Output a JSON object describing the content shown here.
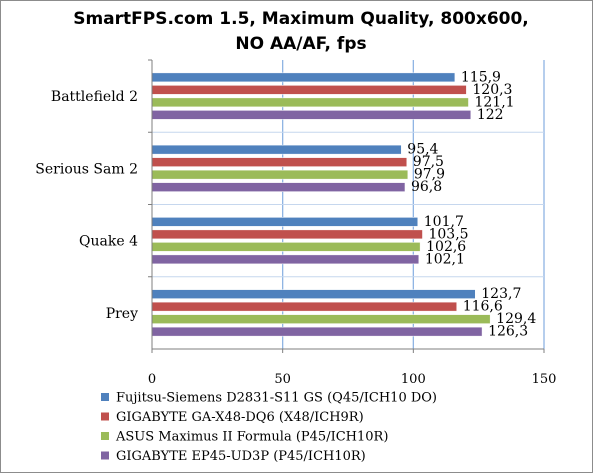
{
  "chart_data": {
    "type": "bar",
    "orientation": "horizontal",
    "title": "SmartFPS.com 1.5, Maximum Quality, 800x600, NO AA/AF, fps",
    "categories": [
      "Battlefield 2",
      "Serious Sam 2",
      "Quake 4",
      "Prey"
    ],
    "series": [
      {
        "name": "Fujitsu-Siemens D2831-S11 GS (Q45/ICH10 DO)",
        "color": "#4f81bd",
        "values": [
          115.9,
          95.4,
          101.7,
          123.7
        ],
        "labels": [
          "115,9",
          "95,4",
          "101,7",
          "123,7"
        ]
      },
      {
        "name": "GIGABYTE GA-X48-DQ6 (X48/ICH9R)",
        "color": "#c0504d",
        "values": [
          120.3,
          97.5,
          103.5,
          116.6
        ],
        "labels": [
          "120,3",
          "97,5",
          "103,5",
          "116,6"
        ]
      },
      {
        "name": "ASUS Maximus II Formula (P45/ICH10R)",
        "color": "#9bbb59",
        "values": [
          121.1,
          97.9,
          102.6,
          129.4
        ],
        "labels": [
          "121,1",
          "97,9",
          "102,6",
          "129,4"
        ]
      },
      {
        "name": "GIGABYTE EP45-UD3P (P45/ICH10R)",
        "color": "#8064a2",
        "values": [
          122,
          96.8,
          102.1,
          126.3
        ],
        "labels": [
          "122",
          "96,8",
          "102,1",
          "126,3"
        ]
      }
    ],
    "xlim": [
      0,
      150
    ],
    "xticks": [
      0,
      50,
      100,
      150
    ],
    "xtick_labels": [
      "0",
      "50",
      "100",
      "150"
    ],
    "grid": true,
    "legend_position": "bottom"
  }
}
